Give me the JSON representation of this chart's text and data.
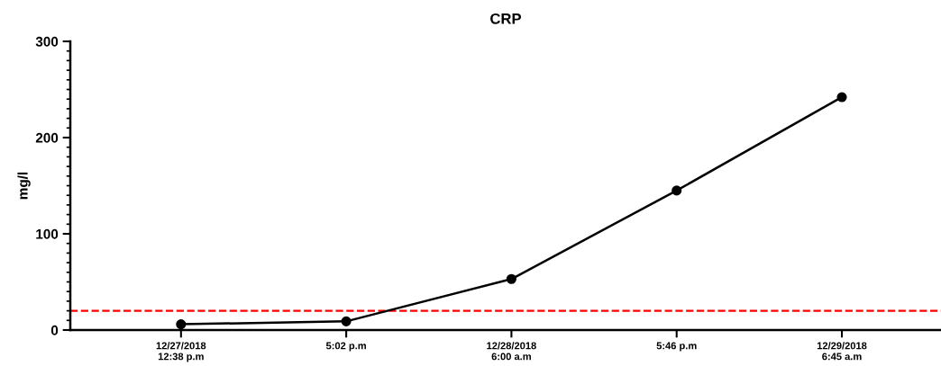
{
  "chart_data": {
    "type": "line",
    "title": "CRP",
    "ylabel": "mg/l",
    "categories": [
      "12/27/2018\n12:38 p.m",
      "5:02 p.m",
      "12/28/2018\n6:00 a.m",
      "5:46 p.m",
      "12/29/2018\n6:45 a.m"
    ],
    "series": [
      {
        "color": "#000000",
        "values": [
          6,
          9,
          53,
          145,
          242
        ]
      }
    ],
    "ylim": [
      0,
      300
    ],
    "yticks": [
      0,
      100,
      200,
      300
    ],
    "ref_lines": [
      {
        "axis": "y",
        "value": 20,
        "color": "#ff0000",
        "line_style": "dashed"
      }
    ],
    "marker": "circle",
    "line_style": "solid",
    "grid": false,
    "legend": false
  }
}
